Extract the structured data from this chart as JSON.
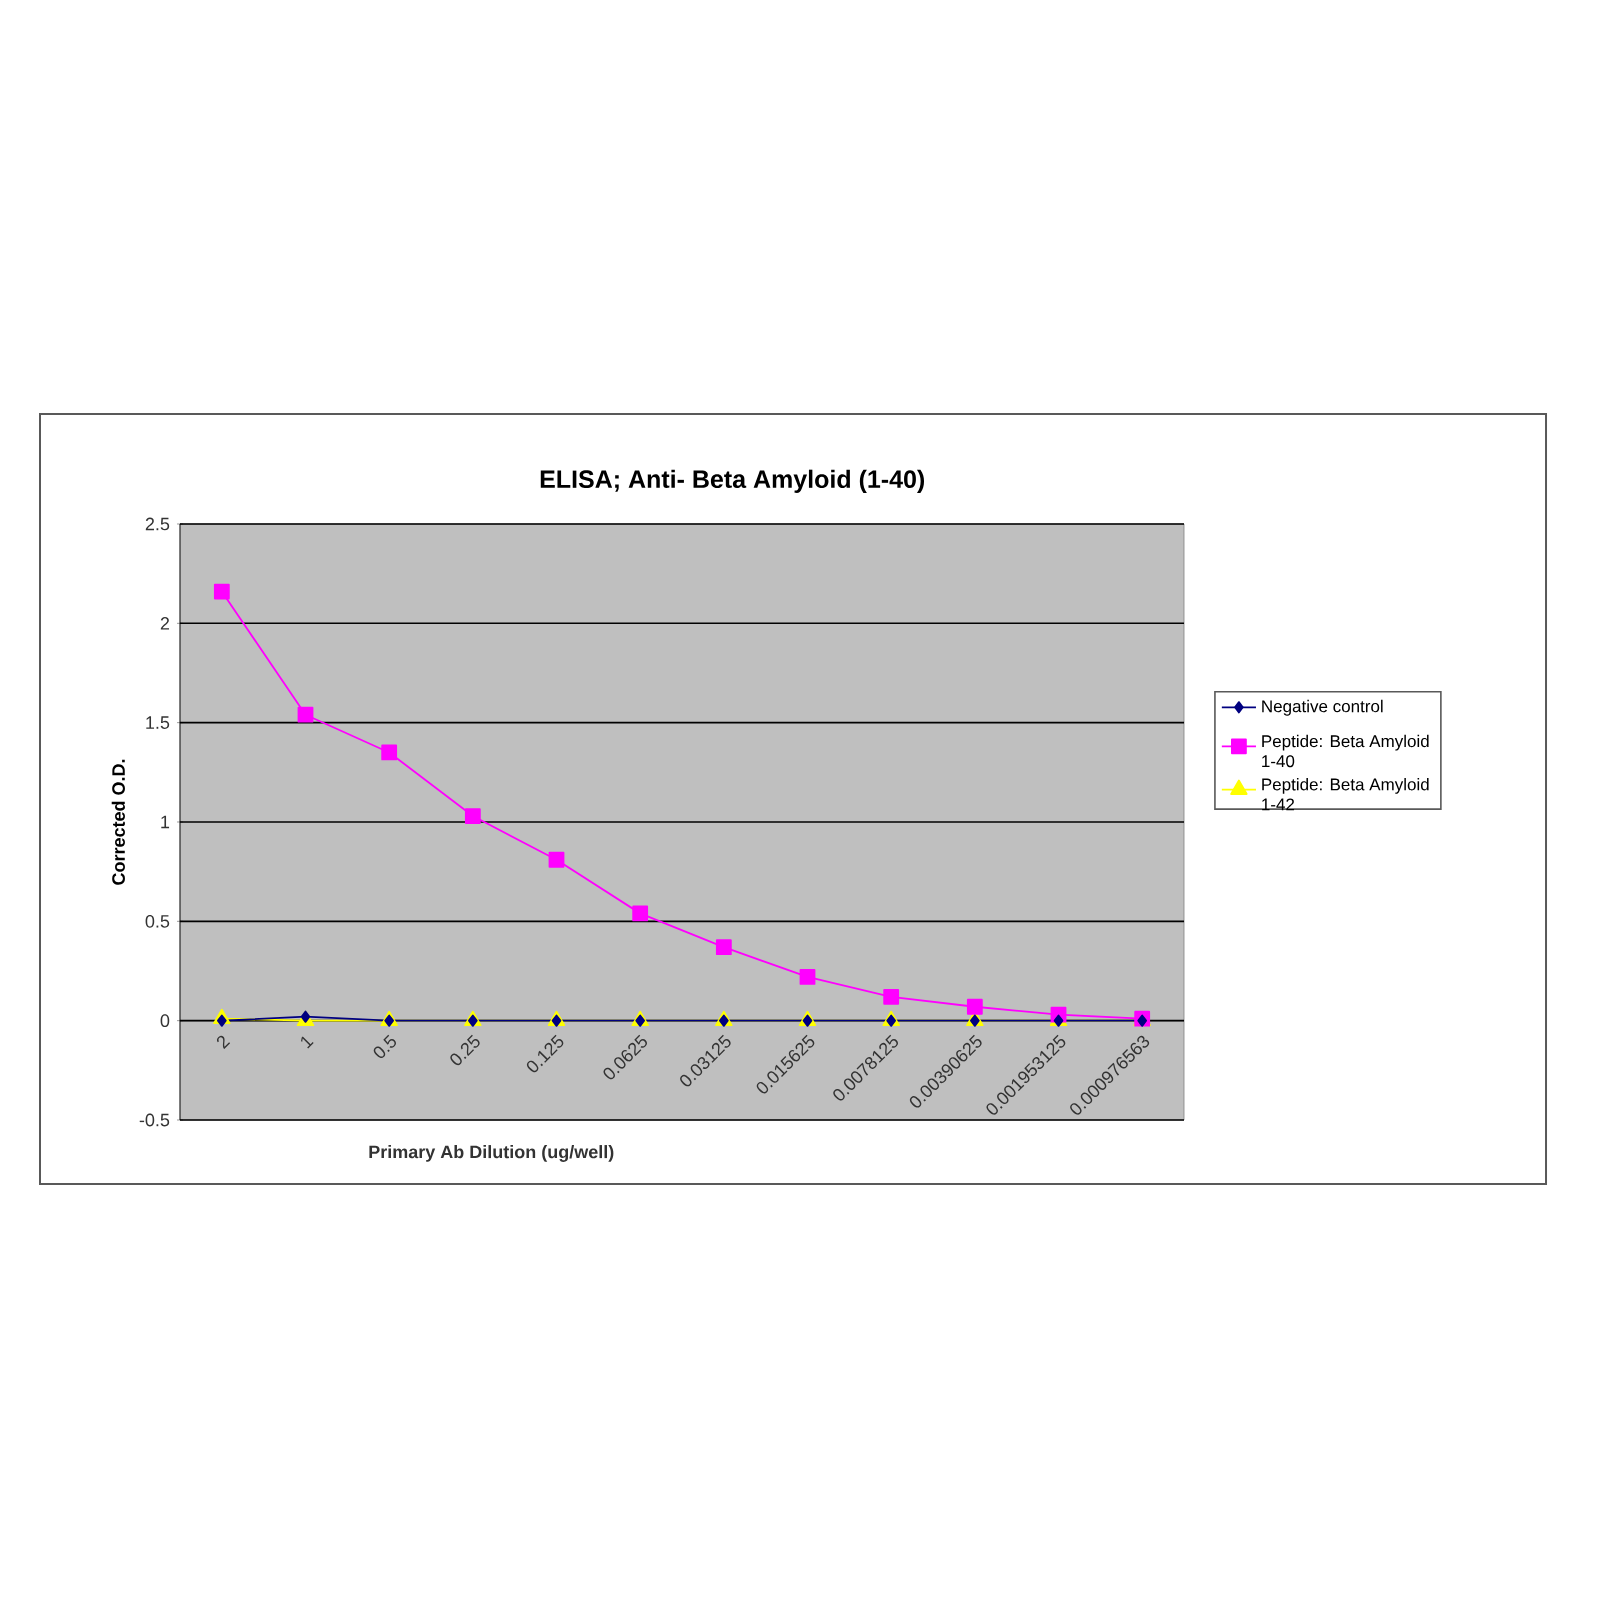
{
  "chart_data": {
    "type": "line",
    "title": "ELISA; Anti- Beta Amyloid (1-40)",
    "xlabel": "Primary Ab Dilution (ug/well)",
    "ylabel": "Corrected O.D.",
    "categories": [
      "2",
      "1",
      "0.5",
      "0.25",
      "0.125",
      "0.0625",
      "0.03125",
      "0.015625",
      "0.0078125",
      "0.00390625",
      "0.001953125",
      "0.000976563"
    ],
    "series": [
      {
        "name": "Negative control",
        "color": "#000080",
        "marker": "diamond",
        "values": [
          0,
          0.02,
          0,
          0,
          0,
          0,
          0,
          0,
          0,
          0,
          0,
          0
        ]
      },
      {
        "name": "Peptide: Beta Amyloid 1-40",
        "color": "#ff00ff",
        "marker": "square",
        "values": [
          2.16,
          1.54,
          1.35,
          1.03,
          0.81,
          0.54,
          0.37,
          0.22,
          0.12,
          0.07,
          0.03,
          0.01
        ]
      },
      {
        "name": "Peptide: Beta Amyloid 1-42",
        "color": "#ffff00",
        "marker": "triangle",
        "values": [
          0.01,
          0,
          0,
          0,
          0,
          0,
          0,
          0,
          0,
          0,
          0,
          0
        ]
      }
    ],
    "ylim": [
      -0.5,
      2.5
    ],
    "yticks": [
      -0.5,
      0,
      0.5,
      1,
      1.5,
      2,
      2.5
    ],
    "grid": "y",
    "legend": "right",
    "line_style": "solid"
  }
}
